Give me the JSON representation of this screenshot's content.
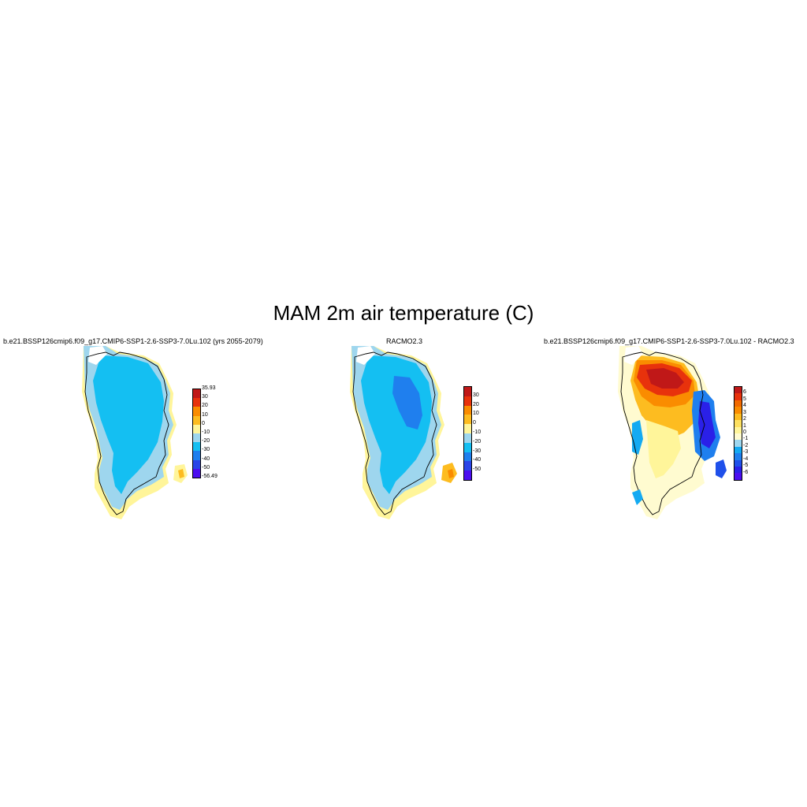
{
  "title": "MAM 2m air temperature (C)",
  "panels": [
    {
      "id": "model",
      "title": "b.e21.BSSP126cmip6.f09_g17.CMIP6-SSP1-2.6-SSP3-7.0Lu.102 (yrs 2055-2079)",
      "colors": [
        "#4b0ef0",
        "#2a45e8",
        "#1f7fee",
        "#14bff2",
        "#9ed6ee",
        "#fff59a",
        "#fdbc20",
        "#fa8c00",
        "#e8320c",
        "#c01818"
      ],
      "labels": [
        "35.93",
        "30",
        "20",
        "10",
        "0",
        "-10",
        "-20",
        "-30",
        "-40",
        "-50",
        "-56.49"
      ]
    },
    {
      "id": "obs",
      "title": "RACMO2.3",
      "colors": [
        "#4b0ef0",
        "#2a45e8",
        "#1f7fee",
        "#14bff2",
        "#9ed6ee",
        "#fff59a",
        "#fdbc20",
        "#fa8c00",
        "#e8320c",
        "#c01818"
      ],
      "labels": [
        "30",
        "20",
        "10",
        "0",
        "-10",
        "-20",
        "-30",
        "-40",
        "-50"
      ]
    },
    {
      "id": "diff",
      "title": "b.e21.BSSP126cmip6.f09_g17.CMIP6-SSP1-2.6-SSP3-7.0Lu.102 - RACMO2.3",
      "colors": [
        "#4b0ef0",
        "#2a20e8",
        "#1f50ea",
        "#1f7fee",
        "#14aaf2",
        "#9ed6ee",
        "#fffbd0",
        "#fff59a",
        "#fde060",
        "#fdbc20",
        "#fa8c00",
        "#f26a00",
        "#e8320c",
        "#c01818"
      ],
      "labels": [
        "6",
        "5",
        "4",
        "3",
        "2",
        "1",
        "0",
        "-1",
        "-2",
        "-3",
        "-4",
        "-5",
        "-6"
      ]
    }
  ]
}
